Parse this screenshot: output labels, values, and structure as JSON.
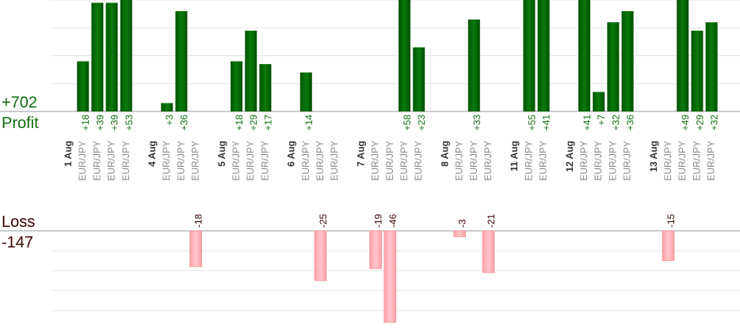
{
  "summary": {
    "profit_total": "+702",
    "profit_label": "Profit",
    "loss_label": "Loss",
    "loss_total": "-147"
  },
  "colors": {
    "profit_bar": "#0b6b0b",
    "loss_bar": "#ffb3b8",
    "profit_text": "#0f6b0f",
    "loss_text": "#3a0000",
    "grid": "#e6e6e6",
    "axis": "#999999"
  },
  "chart_data": {
    "type": "bar",
    "title": "",
    "xlabel": "",
    "ylabel": "",
    "grid": true,
    "ylim_profit": [
      0,
      40
    ],
    "ylim_loss": [
      -46,
      0
    ],
    "days": [
      {
        "label": "1 Aug",
        "trades": [
          {
            "pair": "EUR/JPY",
            "label": "+18",
            "value": 18
          },
          {
            "pair": "EUR/JPY",
            "label": "+39",
            "value": 39
          },
          {
            "pair": "EUR/JPY",
            "label": "+39",
            "value": 39
          },
          {
            "pair": "EUR/JPY",
            "label": "+53",
            "value": 53
          }
        ]
      },
      {
        "label": "4 Aug",
        "trades": [
          {
            "pair": "EUR/JPY",
            "label": "+3",
            "value": 3
          },
          {
            "pair": "EUR/JPY",
            "label": "+36",
            "value": 36
          },
          {
            "pair": "EUR/JPY",
            "label": "-18",
            "value": -18
          }
        ]
      },
      {
        "label": "5 Aug",
        "trades": [
          {
            "pair": "EUR/JPY",
            "label": "+18",
            "value": 18
          },
          {
            "pair": "EUR/JPY",
            "label": "+29",
            "value": 29
          },
          {
            "pair": "EUR/JPY",
            "label": "+17",
            "value": 17
          }
        ]
      },
      {
        "label": "6 Aug",
        "trades": [
          {
            "pair": "EUR/JPY",
            "label": "+14",
            "value": 14
          },
          {
            "pair": "EUR/JPY",
            "label": "-25",
            "value": -25
          },
          {
            "pair": "EUR/JPY",
            "label": "",
            "value": 0
          }
        ]
      },
      {
        "label": "7 Aug",
        "trades": [
          {
            "pair": "EUR/JPY",
            "label": "-19",
            "value": -19
          },
          {
            "pair": "EUR/JPY",
            "label": "-46",
            "value": -46
          },
          {
            "pair": "EUR/JPY",
            "label": "+58",
            "value": 58
          },
          {
            "pair": "EUR/JPY",
            "label": "+23",
            "value": 23
          }
        ]
      },
      {
        "label": "8 Aug",
        "trades": [
          {
            "pair": "EUR/JPY",
            "label": "-3",
            "value": -3
          },
          {
            "pair": "EUR/JPY",
            "label": "+33",
            "value": 33
          },
          {
            "pair": "EUR/JPY",
            "label": "-21",
            "value": -21
          }
        ]
      },
      {
        "label": "11 Aug",
        "trades": [
          {
            "pair": "EUR/JPY",
            "label": "+55",
            "value": 55
          },
          {
            "pair": "EUR/JPY",
            "label": "+41",
            "value": 41
          }
        ]
      },
      {
        "label": "12 Aug",
        "trades": [
          {
            "pair": "EUR/JPY",
            "label": "+41",
            "value": 41
          },
          {
            "pair": "EUR/JPY",
            "label": "+7",
            "value": 7
          },
          {
            "pair": "EUR/JPY",
            "label": "+32",
            "value": 32
          },
          {
            "pair": "EUR/JPY",
            "label": "+36",
            "value": 36
          }
        ]
      },
      {
        "label": "13 Aug",
        "trades": [
          {
            "pair": "EUR/JPY",
            "label": "-15",
            "value": -15
          },
          {
            "pair": "EUR/JPY",
            "label": "+49",
            "value": 49
          },
          {
            "pair": "EUR/JPY",
            "label": "+29",
            "value": 29
          },
          {
            "pair": "EUR/JPY",
            "label": "+32",
            "value": 32
          }
        ]
      }
    ]
  }
}
